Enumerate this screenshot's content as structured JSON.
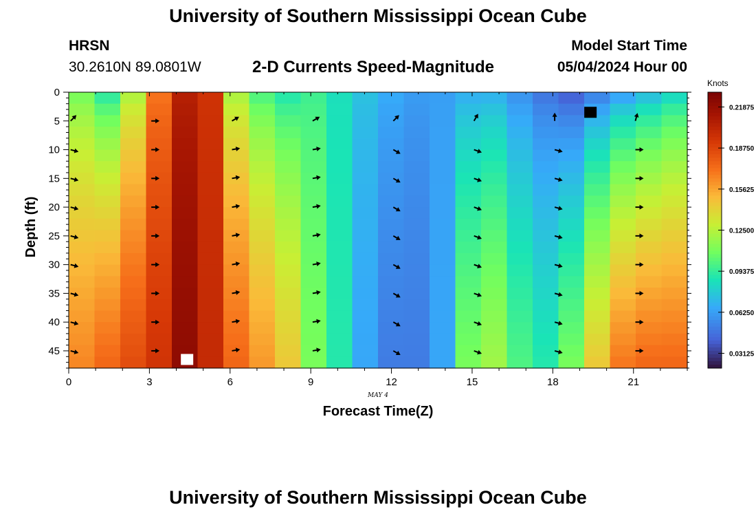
{
  "header": {
    "title": "University of Southern Mississippi Ocean Cube",
    "station_id": "HRSN",
    "station_coords": "30.2610N  89.0801W",
    "subtitle": "2-D Currents Speed-Magnitude",
    "model_start_label": "Model Start Time",
    "model_start_value": "05/04/2024 Hour 00",
    "bottom_title": "University of Southern Mississippi Ocean Cube"
  },
  "chart_data": {
    "type": "heatmap",
    "title": "2-D Currents Speed-Magnitude",
    "xlabel": "Forecast Time(Z)",
    "ylabel": "Depth (ft)",
    "date_label": "MAY 4",
    "x_ticks": [
      0,
      3,
      6,
      9,
      12,
      15,
      18,
      21
    ],
    "y_ticks": [
      0,
      5,
      10,
      15,
      20,
      25,
      30,
      35,
      40,
      45
    ],
    "xlim": [
      0,
      23
    ],
    "ylim": [
      0,
      48
    ],
    "colorbar": {
      "label": "Knots",
      "min": 0.02,
      "max": 0.23,
      "ticks": [
        "0.21875",
        "0.18750",
        "0.15625",
        "0.12500",
        "0.09375",
        "0.06250",
        "0.03125"
      ],
      "tick_values": [
        0.21875,
        0.1875,
        0.15625,
        0.125,
        0.09375,
        0.0625,
        0.03125
      ]
    },
    "speed_by_hour_surface_knots": [
      0.105,
      0.085,
      0.118,
      0.168,
      0.205,
      0.195,
      0.118,
      0.095,
      0.085,
      0.095,
      0.085,
      0.075,
      0.068,
      0.062,
      0.062,
      0.065,
      0.065,
      0.055,
      0.045,
      0.035,
      0.045,
      0.055,
      0.065,
      0.075
    ],
    "speed_by_hour_bottom_knots": [
      0.165,
      0.175,
      0.185,
      0.195,
      0.222,
      0.2,
      0.175,
      0.16,
      0.145,
      0.11,
      0.09,
      0.065,
      0.05,
      0.05,
      0.065,
      0.11,
      0.12,
      0.1,
      0.09,
      0.11,
      0.145,
      0.17,
      0.175,
      0.175
    ],
    "arrow_times": [
      0,
      3,
      6,
      9,
      12,
      15,
      18,
      21
    ],
    "arrow_depths": [
      5,
      10,
      15,
      20,
      25,
      30,
      35,
      40,
      45
    ],
    "arrow_direction_deg_math": [
      -15,
      0,
      10,
      10,
      -30,
      -20,
      -15,
      0
    ],
    "arrow_direction_surface_deg_math": [
      45,
      0,
      30,
      30,
      45,
      60,
      90,
      75
    ],
    "missing_cells": [
      {
        "hour": 4,
        "depth": 46.5,
        "color": "#ffffff"
      },
      {
        "hour": 19,
        "depth": 3.5,
        "color": "#000000"
      }
    ]
  }
}
